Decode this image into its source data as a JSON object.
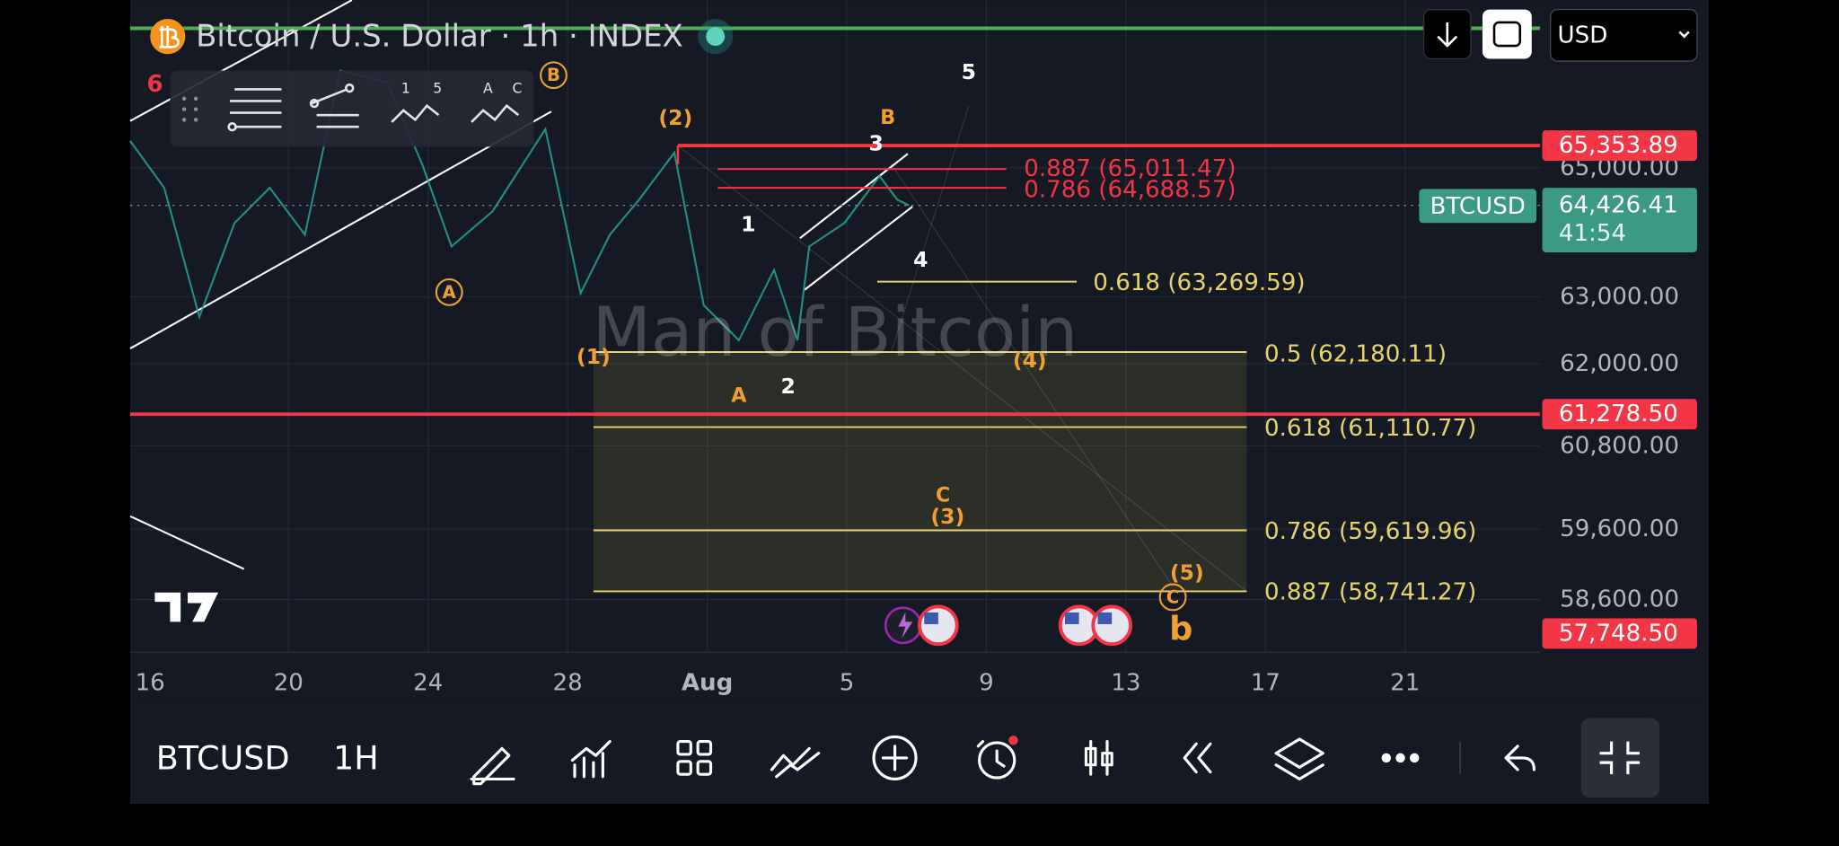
{
  "header": {
    "title": "Bitcoin / U.S. Dollar · 1h · INDEX",
    "currency": "USD"
  },
  "drawing_toolbar": {
    "labels": [
      "1",
      "5",
      "A",
      "C"
    ]
  },
  "watermark": "Man of Bitcoin",
  "price_axis": {
    "labels": [
      "65,000.00",
      "63,000.00",
      "62,000.00",
      "60,800.00",
      "59,600.00",
      "58,600.00"
    ]
  },
  "price_tags": [
    "65,353.89",
    "61,278.50",
    "57,748.50"
  ],
  "current_price": {
    "symbol": "BTCUSD",
    "price": "64,426.41",
    "countdown": "41:54"
  },
  "fib_levels": [
    "0.887 (65,011.47)",
    "0.786 (64,688.57)",
    "0.618 (63,269.59)",
    "0.5 (62,180.11)",
    "0.618 (61,110.77)",
    "0.786 (59,619.96)",
    "0.887 (58,741.27)"
  ],
  "wave_labels": [
    "6",
    "B",
    "(2)",
    "B",
    "3",
    "5",
    "1",
    "4",
    "A",
    "(1)",
    "(4)",
    "2",
    "A",
    "C",
    "(3)",
    "(5)",
    "C",
    "b"
  ],
  "time_axis": [
    "16",
    "20",
    "24",
    "28",
    "Aug",
    "5",
    "9",
    "13",
    "17",
    "21"
  ],
  "bottom_bar": {
    "symbol": "BTCUSD",
    "interval": "1H"
  }
}
